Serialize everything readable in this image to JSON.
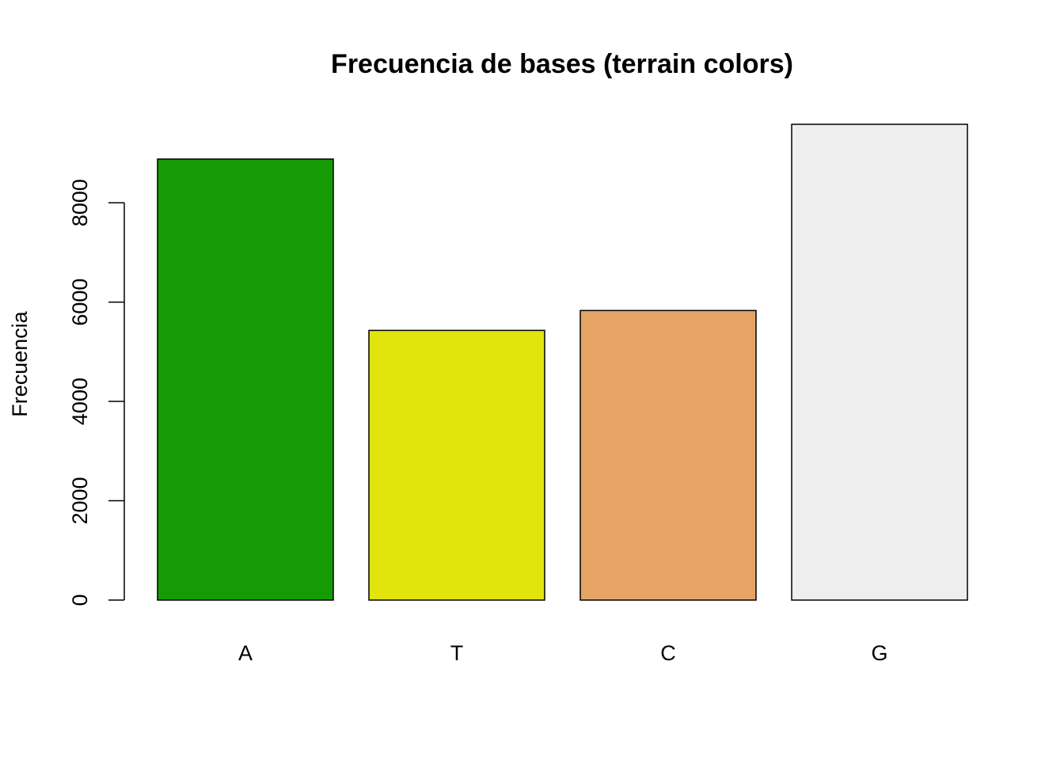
{
  "chart_data": {
    "type": "bar",
    "title": "Frecuencia de bases (terrain colors)",
    "xlabel": "",
    "ylabel": "Frecuencia",
    "categories": [
      "A",
      "T",
      "C",
      "G"
    ],
    "values": [
      8880,
      5430,
      5830,
      9580
    ],
    "colors": [
      "#159b03",
      "#e1e50b",
      "#e5a465",
      "#eeeeee"
    ],
    "yticks": [
      0,
      2000,
      4000,
      6000,
      8000
    ],
    "ylim": [
      0,
      9580
    ],
    "grid": false,
    "legend": "none"
  }
}
